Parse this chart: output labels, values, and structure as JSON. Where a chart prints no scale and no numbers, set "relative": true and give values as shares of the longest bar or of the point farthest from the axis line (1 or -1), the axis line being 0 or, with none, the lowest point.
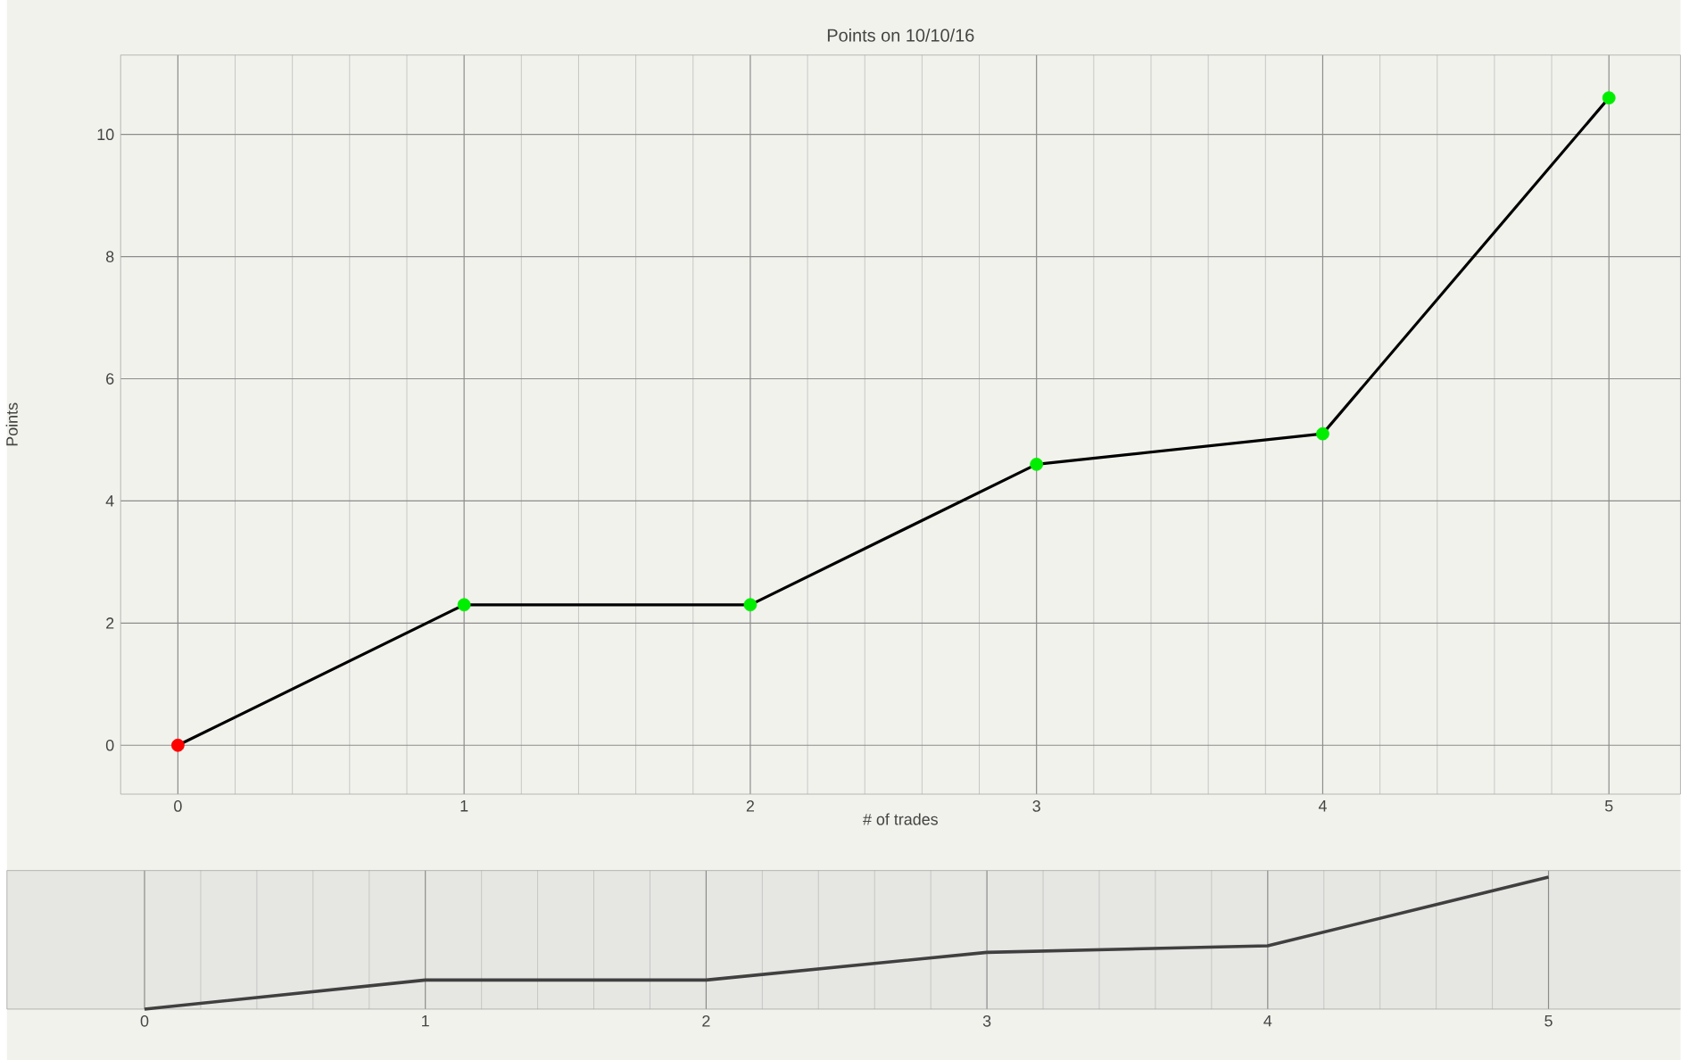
{
  "chart_data": [
    {
      "type": "line",
      "title": "Points on 10/10/16",
      "xlabel": "# of trades",
      "ylabel": "Points",
      "x": [
        0,
        1,
        2,
        3,
        4,
        5
      ],
      "series": [
        {
          "color": "#000000",
          "colors": [
            "#ff0000",
            "#00ee00",
            "#00ee00",
            "#00ee00",
            "#00ee00",
            "#00ee00"
          ],
          "values": [
            0,
            2.3,
            2.3,
            4.6,
            5.1,
            10.6
          ]
        }
      ],
      "xlim": [
        -0.2,
        5.25
      ],
      "ylim": [
        -0.8,
        11.3
      ],
      "xticks": [
        0,
        1,
        2,
        3,
        4,
        5
      ],
      "yticks": [
        0,
        2,
        4,
        6,
        8,
        10
      ],
      "grid": true,
      "marker": "circle"
    },
    {
      "type": "line",
      "relative": true,
      "x": [
        0,
        1,
        2,
        3,
        4,
        5
      ],
      "series": [
        {
          "color": "#404040",
          "values": [
            0,
            0.22,
            0.22,
            0.43,
            0.48,
            1
          ]
        }
      ],
      "xlim": [
        -0.49,
        5.47
      ],
      "xticks": [
        0,
        1,
        2,
        3,
        4,
        5
      ],
      "tick_labels": "x",
      "grid": "x"
    }
  ]
}
